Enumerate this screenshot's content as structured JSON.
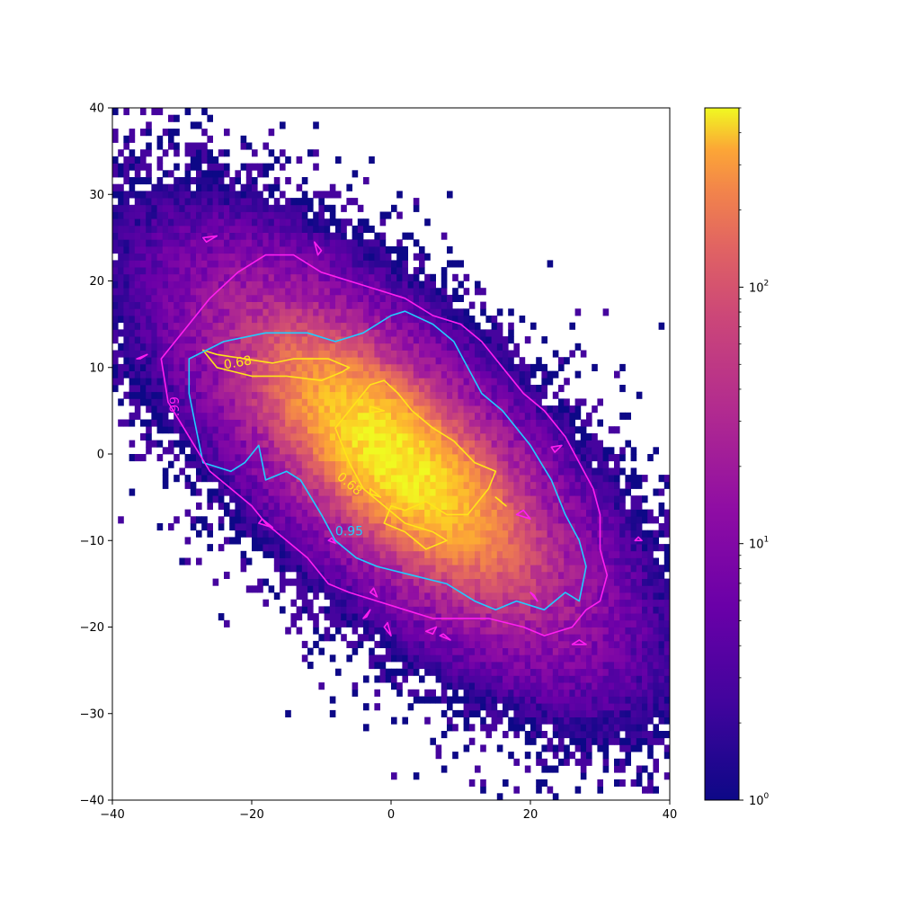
{
  "chart_data": {
    "type": "heatmap",
    "subtype": "2d-histogram-with-contours",
    "title": "",
    "xlabel": "",
    "ylabel": "",
    "xlim": [
      -40,
      40
    ],
    "ylim": [
      -40,
      40
    ],
    "x_ticks": [
      "−40",
      "−20",
      "0",
      "20",
      "40"
    ],
    "x_tick_values": [
      -40,
      -20,
      0,
      20,
      40
    ],
    "y_ticks": [
      "−40",
      "−30",
      "−20",
      "−10",
      "0",
      "10",
      "20",
      "30",
      "40"
    ],
    "y_tick_values": [
      -40,
      -30,
      -20,
      -10,
      0,
      10,
      20,
      30,
      40
    ],
    "grid": false,
    "colormap": "plasma",
    "color_scale": "log",
    "colorbar": {
      "range": [
        1,
        500
      ],
      "ticks": [
        1,
        10,
        100
      ],
      "tick_labels": [
        "10",
        "10",
        "10"
      ],
      "tick_exponents": [
        "0",
        "1",
        "2"
      ]
    },
    "distribution": {
      "center": [
        0.5,
        -0.5
      ],
      "principal_axis_angle_deg": -35,
      "major_extent": 36,
      "minor_extent": 14,
      "peak_count": 450
    },
    "contours": [
      {
        "label": "0.68",
        "color": "#ffe41a",
        "polygons": [
          [
            [
              -27,
              12
            ],
            [
              -25,
              10
            ],
            [
              -20,
              9
            ],
            [
              -15,
              9
            ],
            [
              -10,
              8.5
            ],
            [
              -7,
              9.5
            ],
            [
              -6,
              10
            ],
            [
              -9,
              11
            ],
            [
              -14,
              11
            ],
            [
              -17,
              10.5
            ],
            [
              -21,
              11
            ],
            [
              -25,
              11.5
            ],
            [
              -27,
              12
            ]
          ],
          [
            [
              -8,
              3
            ],
            [
              -6,
              5
            ],
            [
              -3,
              8
            ],
            [
              -1,
              8.5
            ],
            [
              1,
              7
            ],
            [
              3,
              5
            ],
            [
              6,
              3
            ],
            [
              9,
              1.5
            ],
            [
              12,
              -1
            ],
            [
              15,
              -2
            ],
            [
              14,
              -4
            ],
            [
              11,
              -7
            ],
            [
              8,
              -7
            ],
            [
              5,
              -5.5
            ],
            [
              2,
              -6.5
            ],
            [
              0,
              -6
            ],
            [
              -1,
              -8
            ],
            [
              2,
              -9
            ],
            [
              5,
              -11
            ],
            [
              8,
              -10
            ],
            [
              6,
              -9
            ],
            [
              2,
              -8
            ],
            [
              -1,
              -6
            ],
            [
              -4,
              -4
            ],
            [
              -6,
              -1
            ],
            [
              -8,
              3
            ]
          ],
          [
            [
              -3,
              5.5
            ],
            [
              -1,
              5
            ],
            [
              -3,
              4.8
            ],
            [
              -3,
              5.5
            ]
          ],
          [
            [
              -3,
              -4
            ],
            [
              -1.5,
              -5
            ],
            [
              -3,
              -4.6
            ],
            [
              -3,
              -4
            ]
          ],
          [
            [
              15,
              -5
            ],
            [
              16.5,
              -6
            ],
            [
              15.5,
              -5.3
            ],
            [
              15,
              -5
            ]
          ]
        ]
      },
      {
        "label": "0.95",
        "color": "#22ccff",
        "polygons": [
          [
            [
              -29,
              11
            ],
            [
              -24,
              13
            ],
            [
              -18,
              14
            ],
            [
              -12,
              14
            ],
            [
              -8,
              13
            ],
            [
              -4,
              14
            ],
            [
              0,
              16
            ],
            [
              2,
              16.5
            ],
            [
              6,
              15
            ],
            [
              9,
              13
            ],
            [
              11,
              10
            ],
            [
              13,
              7
            ],
            [
              16,
              5
            ],
            [
              20,
              1
            ],
            [
              23,
              -3
            ],
            [
              25,
              -7
            ],
            [
              27,
              -10
            ],
            [
              28,
              -13
            ],
            [
              27,
              -17
            ],
            [
              25,
              -16
            ],
            [
              22,
              -18
            ],
            [
              18,
              -17
            ],
            [
              15,
              -18
            ],
            [
              12,
              -17
            ],
            [
              8,
              -15
            ],
            [
              3,
              -14
            ],
            [
              -2,
              -13
            ],
            [
              -5,
              -12
            ],
            [
              -8,
              -10
            ],
            [
              -10,
              -7
            ],
            [
              -13,
              -3
            ],
            [
              -15,
              -2
            ],
            [
              -18,
              -3
            ],
            [
              -19,
              1
            ],
            [
              -21,
              -1
            ],
            [
              -23,
              -2
            ],
            [
              -27,
              -1
            ],
            [
              -28,
              3
            ],
            [
              -29,
              7
            ],
            [
              -29,
              11
            ]
          ]
        ]
      },
      {
        "label": "0.99",
        "color": "#ff1ff0",
        "polygons": [
          [
            [
              -33,
              11
            ],
            [
              -30,
              14
            ],
            [
              -26,
              18
            ],
            [
              -22,
              21
            ],
            [
              -18,
              23
            ],
            [
              -14,
              23
            ],
            [
              -10,
              21
            ],
            [
              -6,
              20
            ],
            [
              -2,
              19
            ],
            [
              2,
              18
            ],
            [
              6,
              16
            ],
            [
              10,
              15
            ],
            [
              13,
              13
            ],
            [
              16,
              10
            ],
            [
              19,
              7
            ],
            [
              22,
              5
            ],
            [
              25,
              2
            ],
            [
              27,
              -1
            ],
            [
              29,
              -4
            ],
            [
              30,
              -7
            ],
            [
              30,
              -11
            ],
            [
              31,
              -14
            ],
            [
              30,
              -17
            ],
            [
              28,
              -18
            ],
            [
              26,
              -20
            ],
            [
              22,
              -21
            ],
            [
              19,
              -20
            ],
            [
              14,
              -19
            ],
            [
              10,
              -19
            ],
            [
              6,
              -19
            ],
            [
              2,
              -18
            ],
            [
              -2,
              -17
            ],
            [
              -6,
              -16
            ],
            [
              -9,
              -15
            ],
            [
              -12,
              -12
            ],
            [
              -15,
              -10
            ],
            [
              -18,
              -8
            ],
            [
              -20,
              -6
            ],
            [
              -23,
              -4
            ],
            [
              -26,
              -2
            ],
            [
              -29,
              2
            ],
            [
              -32,
              6
            ],
            [
              -33,
              11
            ]
          ],
          [
            [
              -36.5,
              11
            ],
            [
              -35,
              11.5
            ],
            [
              -36,
              11
            ],
            [
              -36.5,
              11
            ]
          ],
          [
            [
              -27,
              25
            ],
            [
              -25,
              25.2
            ],
            [
              -26.5,
              24.5
            ],
            [
              -27,
              25
            ]
          ],
          [
            [
              -11,
              24.5
            ],
            [
              -10,
              23.5
            ],
            [
              -10.5,
              23
            ],
            [
              -11,
              24.5
            ]
          ],
          [
            [
              23,
              0.8
            ],
            [
              24.5,
              1
            ],
            [
              23.5,
              0.2
            ],
            [
              23,
              0.8
            ]
          ],
          [
            [
              18,
              -7
            ],
            [
              20,
              -7.5
            ],
            [
              19,
              -6.5
            ],
            [
              18,
              -7
            ]
          ],
          [
            [
              -19,
              -8
            ],
            [
              -17,
              -8.5
            ],
            [
              -18.5,
              -7.5
            ],
            [
              -19,
              -8
            ]
          ],
          [
            [
              -9,
              -10
            ],
            [
              -8,
              -10.3
            ],
            [
              -8.5,
              -9.7
            ],
            [
              -9,
              -10
            ]
          ],
          [
            [
              -3,
              -16
            ],
            [
              -2,
              -16.5
            ],
            [
              -2.5,
              -15.5
            ],
            [
              -3,
              -16
            ]
          ],
          [
            [
              -4,
              -19
            ],
            [
              -3,
              -18
            ],
            [
              -3.5,
              -18.8
            ],
            [
              -4,
              -19
            ]
          ],
          [
            [
              -1,
              -20
            ],
            [
              0,
              -21
            ],
            [
              -0.5,
              -19.5
            ],
            [
              -1,
              -20
            ]
          ],
          [
            [
              5,
              -20.5
            ],
            [
              6.5,
              -20
            ],
            [
              6,
              -20.8
            ],
            [
              5,
              -20.5
            ]
          ],
          [
            [
              7,
              -21
            ],
            [
              8.5,
              -21.5
            ],
            [
              7.5,
              -20.8
            ],
            [
              7,
              -21
            ]
          ],
          [
            [
              26,
              -22
            ],
            [
              28,
              -22
            ],
            [
              27,
              -21.5
            ],
            [
              26,
              -22
            ]
          ],
          [
            [
              20,
              -16
            ],
            [
              21,
              -17
            ],
            [
              20.5,
              -16.3
            ],
            [
              20,
              -16
            ]
          ],
          [
            [
              35,
              -10
            ],
            [
              36,
              -10
            ],
            [
              35.5,
              -9.6
            ],
            [
              35,
              -10
            ]
          ]
        ]
      }
    ],
    "contour_labels": [
      {
        "text": "0.68",
        "x": -22,
        "y": 10.5,
        "rotation": -10,
        "color": "#ffe41a"
      },
      {
        "text": "0.68",
        "x": -6,
        "y": -3.5,
        "rotation": 40,
        "color": "#ffe41a"
      },
      {
        "text": "0.95",
        "x": -6,
        "y": -9,
        "rotation": 0,
        "color": "#22ccff"
      },
      {
        "text": ".99",
        "x": -31,
        "y": 5.5,
        "rotation": -90,
        "color": "#ff1ff0"
      }
    ]
  }
}
